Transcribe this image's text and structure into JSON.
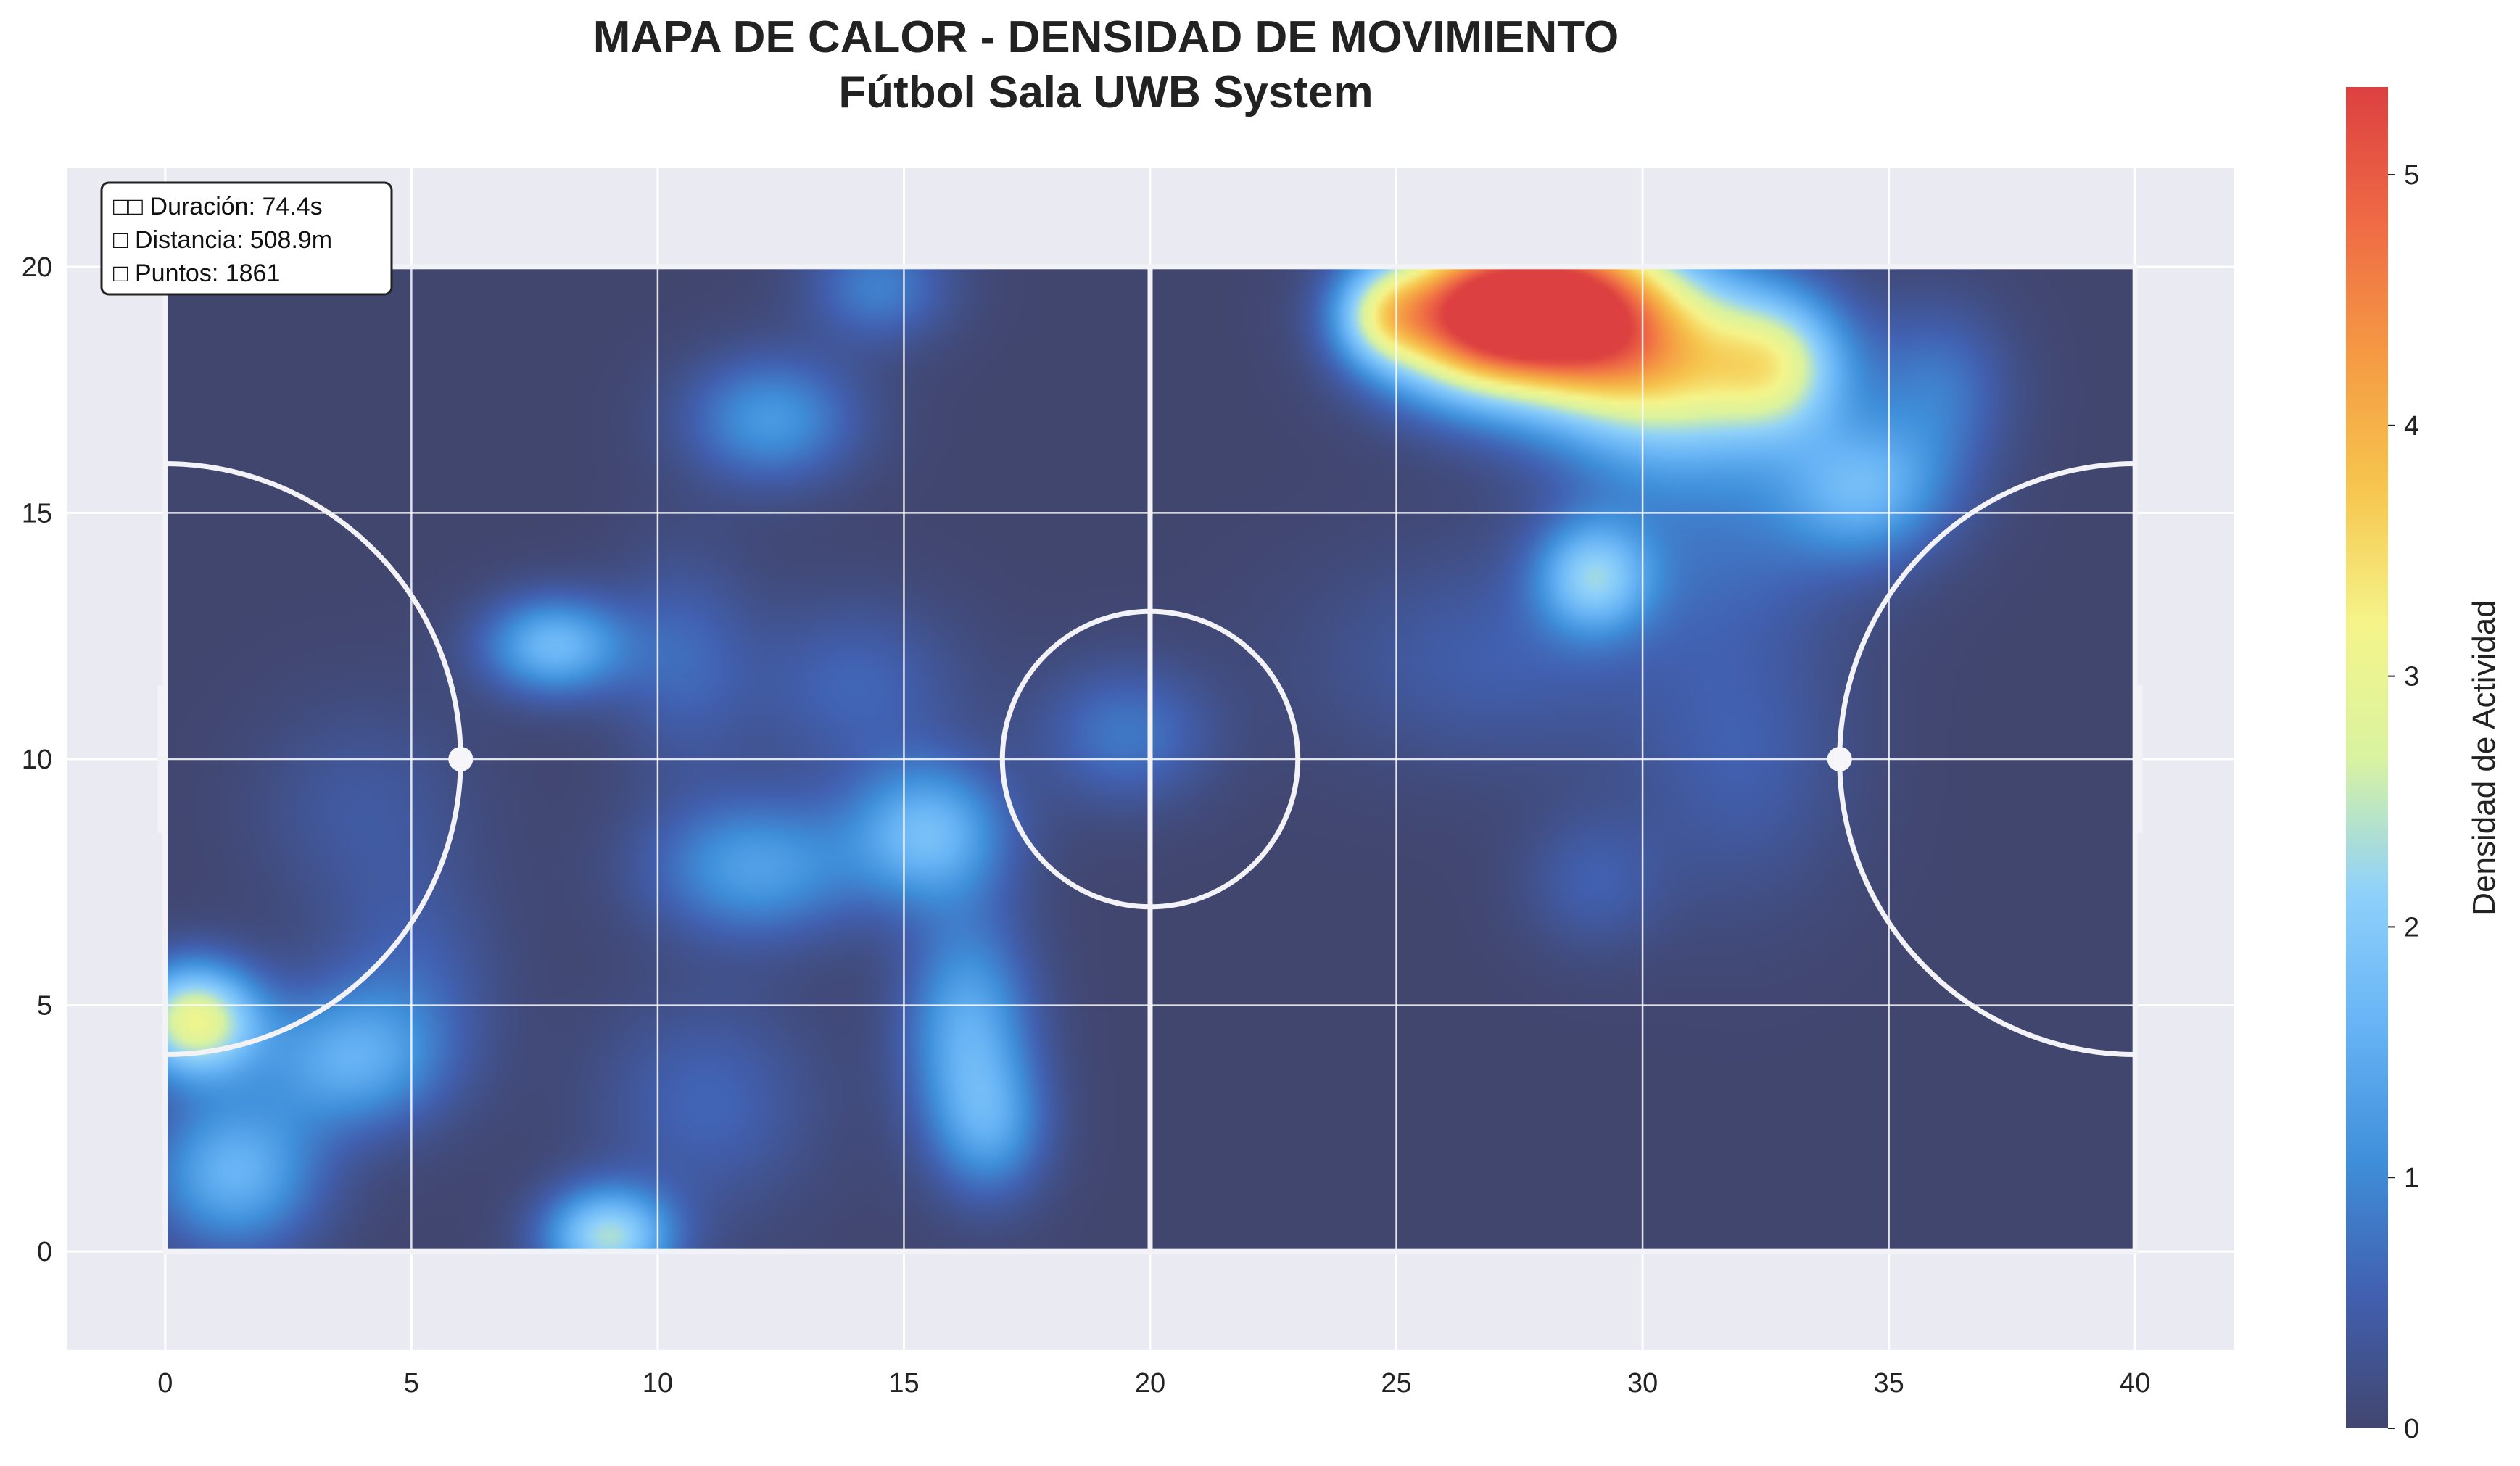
{
  "chart_data": {
    "type": "heatmap",
    "title": "MAPA DE CALOR - DENSIDAD DE MOVIMIENTO",
    "subtitle": "Fútbol Sala UWB System",
    "xlabel": "",
    "ylabel": "",
    "xlim": [
      -2,
      42
    ],
    "ylim": [
      -2,
      22
    ],
    "xticks": [
      0,
      5,
      10,
      15,
      20,
      25,
      30,
      35,
      40
    ],
    "yticks": [
      0,
      5,
      10,
      15,
      20
    ],
    "grid": true,
    "court": {
      "length": 40,
      "width": 20,
      "center_circle_radius": 3,
      "area_radius": 6,
      "penalty_spots": [
        [
          6,
          10
        ],
        [
          34,
          10
        ]
      ]
    },
    "info_box": {
      "duration": "□□ Duración: 74.4s",
      "distance": "□ Distancia: 508.9m",
      "points": "□ Puntos: 1861"
    },
    "colorbar": {
      "label": "Densidad de Actividad",
      "range": [
        0,
        5.35
      ],
      "ticks": [
        0,
        1,
        2,
        3,
        4,
        5
      ],
      "colors": [
        "#41466f",
        "#4160b0",
        "#3f8fda",
        "#67b3f5",
        "#8fd1fa",
        "#d9f3a0",
        "#f5f48a",
        "#f6c64e",
        "#f59a43",
        "#ef6a45",
        "#dc4040"
      ]
    },
    "hotspots": [
      {
        "x": 28.3,
        "y": 19.2,
        "value": 5.0,
        "sx": 1.5,
        "sy": 1.2
      },
      {
        "x": 26.3,
        "y": 19.0,
        "value": 3.6,
        "sx": 1.3,
        "sy": 1.1
      },
      {
        "x": 30.5,
        "y": 18.0,
        "value": 2.9,
        "sx": 1.7,
        "sy": 1.4
      },
      {
        "x": 32.8,
        "y": 18.0,
        "value": 2.0,
        "sx": 1.0,
        "sy": 1.0
      },
      {
        "x": 24.7,
        "y": 19.0,
        "value": 1.6,
        "sx": 0.7,
        "sy": 0.7
      },
      {
        "x": 29.0,
        "y": 13.7,
        "value": 1.8,
        "sx": 0.8,
        "sy": 0.8
      },
      {
        "x": 34.5,
        "y": 15.5,
        "value": 1.5,
        "sx": 1.2,
        "sy": 1.0
      },
      {
        "x": 36.0,
        "y": 17.5,
        "value": 0.8,
        "sx": 1.0,
        "sy": 1.2
      },
      {
        "x": 31.5,
        "y": 14.5,
        "value": 0.6,
        "sx": 2.0,
        "sy": 1.5
      },
      {
        "x": 27.0,
        "y": 12.0,
        "value": 0.5,
        "sx": 2.5,
        "sy": 1.5
      },
      {
        "x": 32.0,
        "y": 10.0,
        "value": 0.5,
        "sx": 1.5,
        "sy": 2.0
      },
      {
        "x": 29.0,
        "y": 7.5,
        "value": 0.5,
        "sx": 1.0,
        "sy": 1.0
      },
      {
        "x": 0.6,
        "y": 4.7,
        "value": 3.0,
        "sx": 0.9,
        "sy": 0.8
      },
      {
        "x": 1.4,
        "y": 1.6,
        "value": 1.6,
        "sx": 1.2,
        "sy": 1.1
      },
      {
        "x": 3.7,
        "y": 3.9,
        "value": 1.4,
        "sx": 1.3,
        "sy": 1.0
      },
      {
        "x": 9.0,
        "y": 0.3,
        "value": 2.3,
        "sx": 0.9,
        "sy": 0.7
      },
      {
        "x": 7.9,
        "y": 12.3,
        "value": 1.7,
        "sx": 1.0,
        "sy": 0.7
      },
      {
        "x": 12.3,
        "y": 16.9,
        "value": 1.2,
        "sx": 1.2,
        "sy": 0.9
      },
      {
        "x": 14.5,
        "y": 19.6,
        "value": 0.9,
        "sx": 1.0,
        "sy": 0.8
      },
      {
        "x": 15.5,
        "y": 8.5,
        "value": 1.7,
        "sx": 1.1,
        "sy": 1.0
      },
      {
        "x": 12.0,
        "y": 7.8,
        "value": 1.3,
        "sx": 1.5,
        "sy": 1.0
      },
      {
        "x": 16.3,
        "y": 4.5,
        "value": 1.5,
        "sx": 0.9,
        "sy": 1.6
      },
      {
        "x": 16.8,
        "y": 2.5,
        "value": 1.0,
        "sx": 0.8,
        "sy": 1.0
      },
      {
        "x": 19.5,
        "y": 10.5,
        "value": 0.8,
        "sx": 1.2,
        "sy": 1.0
      },
      {
        "x": 14.0,
        "y": 11.5,
        "value": 0.6,
        "sx": 1.5,
        "sy": 1.2
      },
      {
        "x": 10.5,
        "y": 12.0,
        "value": 0.6,
        "sx": 1.0,
        "sy": 1.5
      },
      {
        "x": 11.0,
        "y": 3.0,
        "value": 0.6,
        "sx": 1.5,
        "sy": 1.5
      },
      {
        "x": 5.0,
        "y": 5.5,
        "value": 0.5,
        "sx": 1.2,
        "sy": 1.5
      },
      {
        "x": 4.0,
        "y": 9.0,
        "value": 0.4,
        "sx": 1.5,
        "sy": 1.5
      }
    ]
  }
}
